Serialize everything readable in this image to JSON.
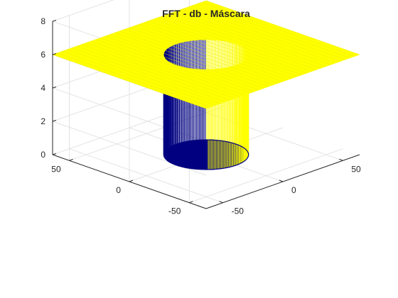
{
  "chart_data": {
    "type": "surface",
    "title": "FFT - db - Máscara",
    "xlabel": "",
    "ylabel": "",
    "zlabel": "",
    "x_ticks": [
      "-50",
      "0",
      "50"
    ],
    "y_ticks": [
      "-50",
      "0",
      "50"
    ],
    "z_ticks": [
      "0",
      "2",
      "4",
      "6",
      "8"
    ],
    "xlim": [
      -64,
      64
    ],
    "ylim": [
      -64,
      64
    ],
    "zlim": [
      0,
      8
    ],
    "grid": true,
    "surface": {
      "shape": "circular notch mask",
      "plateau_z": 6,
      "hole_z": 0,
      "hole_radius": 25,
      "grid_step": 1,
      "outer_color": "#ffff00",
      "inner_color": "#000080"
    }
  }
}
